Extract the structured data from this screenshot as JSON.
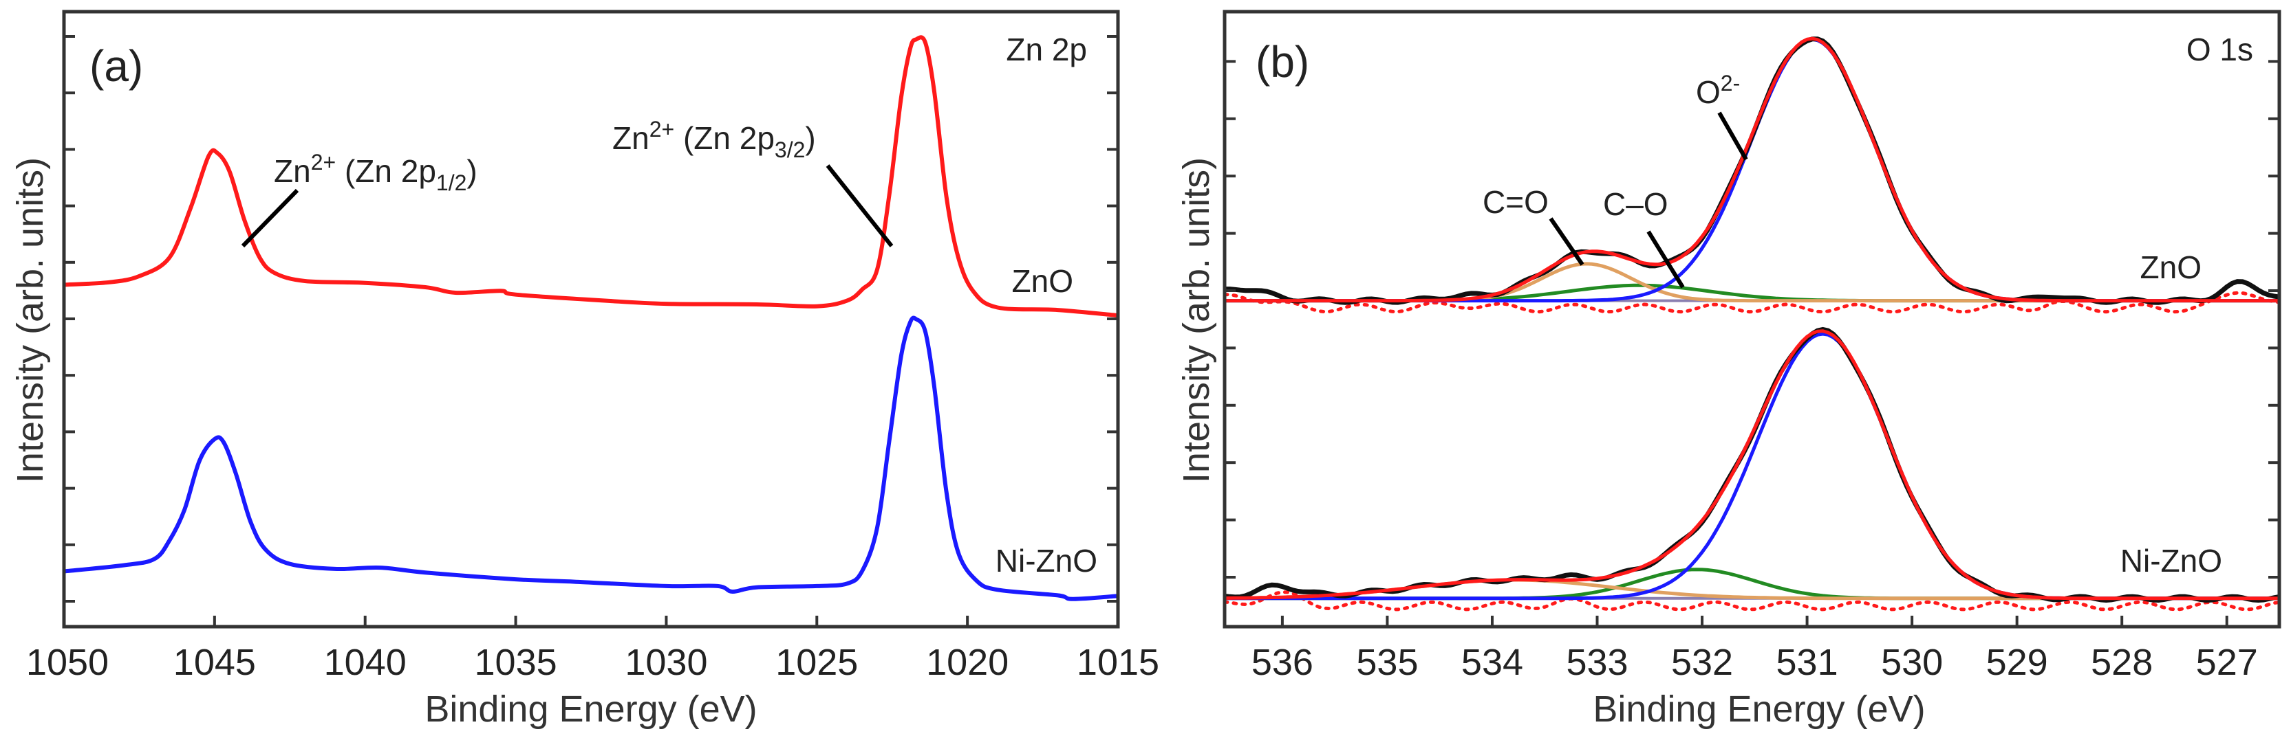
{
  "chart_data": {
    "type": "line",
    "panels": [
      {
        "label": "(a)",
        "title": "Zn 2p",
        "xlabel": "Binding Energy (eV)",
        "ylabel": "Intensity (arb. units)",
        "xlim": [
          1050,
          1015
        ],
        "ylim": [
          0,
          1
        ],
        "xticks": [
          "1050",
          "1045",
          "1040",
          "1035",
          "1030",
          "1025",
          "1020",
          "1015"
        ],
        "sample_labels": [
          "ZnO",
          "Ni-ZnO"
        ],
        "annotations": [
          {
            "base": "Zn",
            "sup": "2+",
            "mid": " (Zn 2p",
            "sub": "1/2",
            "end": ")"
          },
          {
            "base": "Zn",
            "sup": "2+",
            "mid": " (Zn 2p",
            "sub": "3/2",
            "end": ")"
          }
        ],
        "series": [
          {
            "name": "ZnO",
            "color": "#ff1a1a",
            "points": [
              [
                1050,
                0.556
              ],
              [
                1048.5,
                0.56
              ],
              [
                1047.5,
                0.57
              ],
              [
                1046.5,
                0.6
              ],
              [
                1045.8,
                0.68
              ],
              [
                1045.2,
                0.765
              ],
              [
                1044.9,
                0.77
              ],
              [
                1044.5,
                0.74
              ],
              [
                1044,
                0.66
              ],
              [
                1043.5,
                0.6
              ],
              [
                1043,
                0.575
              ],
              [
                1042,
                0.562
              ],
              [
                1040,
                0.559
              ],
              [
                1038,
                0.552
              ],
              [
                1037,
                0.543
              ],
              [
                1035.5,
                0.546
              ],
              [
                1035,
                0.54
              ],
              [
                1032,
                0.53
              ],
              [
                1030,
                0.525
              ],
              [
                1027,
                0.524
              ],
              [
                1025,
                0.521
              ],
              [
                1024,
                0.53
              ],
              [
                1023.5,
                0.548
              ],
              [
                1023,
                0.58
              ],
              [
                1022.6,
                0.7
              ],
              [
                1022.2,
                0.86
              ],
              [
                1021.9,
                0.94
              ],
              [
                1021.7,
                0.955
              ],
              [
                1021.4,
                0.95
              ],
              [
                1021.1,
                0.87
              ],
              [
                1020.7,
                0.7
              ],
              [
                1020.3,
                0.6
              ],
              [
                1019.8,
                0.545
              ],
              [
                1019,
                0.519
              ],
              [
                1017,
                0.515
              ],
              [
                1015,
                0.506
              ]
            ]
          },
          {
            "name": "Ni-ZnO",
            "color": "#1a1aff",
            "points": [
              [
                1050,
                0.09
              ],
              [
                1048,
                0.1
              ],
              [
                1047,
                0.11
              ],
              [
                1046.5,
                0.14
              ],
              [
                1046,
                0.19
              ],
              [
                1045.5,
                0.27
              ],
              [
                1045,
                0.305
              ],
              [
                1044.7,
                0.3
              ],
              [
                1044.3,
                0.25
              ],
              [
                1043.8,
                0.17
              ],
              [
                1043.3,
                0.125
              ],
              [
                1042.5,
                0.102
              ],
              [
                1041,
                0.094
              ],
              [
                1039.5,
                0.096
              ],
              [
                1038,
                0.088
              ],
              [
                1035,
                0.077
              ],
              [
                1033,
                0.073
              ],
              [
                1030,
                0.066
              ],
              [
                1028.3,
                0.066
              ],
              [
                1027.8,
                0.057
              ],
              [
                1027,
                0.064
              ],
              [
                1025,
                0.066
              ],
              [
                1024,
                0.07
              ],
              [
                1023.5,
                0.09
              ],
              [
                1023,
                0.16
              ],
              [
                1022.6,
                0.3
              ],
              [
                1022.2,
                0.44
              ],
              [
                1021.9,
                0.495
              ],
              [
                1021.7,
                0.5
              ],
              [
                1021.4,
                0.48
              ],
              [
                1021.1,
                0.39
              ],
              [
                1020.7,
                0.22
              ],
              [
                1020.3,
                0.12
              ],
              [
                1019.7,
                0.075
              ],
              [
                1019,
                0.06
              ],
              [
                1017,
                0.051
              ],
              [
                1016.5,
                0.045
              ],
              [
                1015,
                0.05
              ]
            ]
          }
        ]
      },
      {
        "label": "(b)",
        "title": "O 1s",
        "xlabel": "Binding Energy (eV)",
        "ylabel": "Intensity (arb. units)",
        "xlim": [
          536.55,
          526.5
        ],
        "ylim": [
          0,
          1
        ],
        "xticks": [
          "536",
          "535",
          "534",
          "533",
          "532",
          "531",
          "530",
          "529",
          "528",
          "527"
        ],
        "sample_labels": [
          "ZnO",
          "Ni-ZnO"
        ],
        "annotations": [
          {
            "base": "O",
            "sup": "2-"
          },
          {
            "base": "C=O"
          },
          {
            "base": "C–O"
          }
        ],
        "colors": {
          "data": "#111111",
          "envelope": "#ff1a1a",
          "O2-": "#1a1aff",
          "C=O": "#e0a060",
          "C-O": "#228b22",
          "background": "#8a7fb0",
          "residual": "#ff1a1a"
        },
        "fits": [
          {
            "sample": "ZnO",
            "baseline": 0.53,
            "components": [
              {
                "name": "O2-",
                "center": 530.95,
                "amplitude": 0.425,
                "fwhm": 1.38
              },
              {
                "name": "C=O",
                "center": 533.1,
                "amplitude": 0.06,
                "fwhm": 1.0
              },
              {
                "name": "C-O",
                "center": 532.6,
                "amplitude": 0.025,
                "fwhm": 1.6
              }
            ],
            "data_bumps": [
              [
                536.4,
                0.02,
                0.6
              ],
              [
                526.85,
                0.03,
                0.4
              ],
              [
                528.65,
                0.008,
                0.3
              ],
              [
                534.3,
                0.006,
                0.5
              ]
            ]
          },
          {
            "sample": "Ni-ZnO",
            "baseline": 0.046,
            "components": [
              {
                "name": "O2-",
                "center": 530.85,
                "amplitude": 0.43,
                "fwhm": 1.45
              },
              {
                "name": "C=O",
                "center": 533.8,
                "amplitude": 0.03,
                "fwhm": 2.2
              },
              {
                "name": "C-O",
                "center": 532.05,
                "amplitude": 0.047,
                "fwhm": 1.3
              }
            ],
            "data_bumps": [
              [
                536.05,
                0.018,
                0.5
              ],
              [
                533.3,
                0.006,
                0.4
              ]
            ]
          }
        ]
      }
    ]
  }
}
